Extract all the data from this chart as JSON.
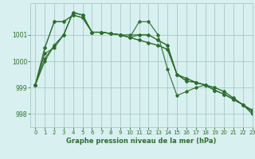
{
  "bg_color": "#d8f0f0",
  "grid_color": "#a8c8c8",
  "line_color": "#2d6e2d",
  "xlabel": "Graphe pression niveau de la mer (hPa)",
  "ylim": [
    997.5,
    1002.2
  ],
  "xlim": [
    -0.5,
    23
  ],
  "yticks": [
    998,
    999,
    1000,
    1001
  ],
  "xticks": [
    0,
    1,
    2,
    3,
    4,
    5,
    6,
    7,
    8,
    9,
    10,
    11,
    12,
    13,
    14,
    15,
    16,
    17,
    18,
    19,
    20,
    21,
    22,
    23
  ],
  "series": [
    [
      999.1,
      1000.0,
      1000.6,
      1001.0,
      1001.85,
      1001.75,
      1001.1,
      1001.1,
      1001.05,
      1001.0,
      1001.0,
      1001.0,
      1001.0,
      1000.8,
      1000.6,
      999.5,
      999.35,
      999.2,
      999.1,
      999.0,
      998.85,
      998.6,
      998.35,
      998.1
    ],
    [
      999.1,
      1000.3,
      1000.5,
      1001.0,
      1001.85,
      1001.75,
      1001.1,
      1001.1,
      1001.05,
      1001.0,
      1000.9,
      1001.0,
      1001.0,
      1000.8,
      1000.6,
      999.5,
      999.35,
      999.2,
      999.1,
      999.0,
      998.85,
      998.6,
      998.35,
      998.1
    ],
    [
      999.1,
      1000.5,
      1001.5,
      1001.5,
      1001.75,
      1001.65,
      1001.1,
      1001.1,
      1001.05,
      1001.0,
      1000.9,
      1000.8,
      1000.7,
      1000.6,
      1000.45,
      999.5,
      999.25,
      999.2,
      999.1,
      998.9,
      998.75,
      998.55,
      998.35,
      998.15
    ],
    [
      999.1,
      1000.5,
      1001.5,
      1001.5,
      1001.75,
      1001.65,
      1001.1,
      1001.1,
      1001.05,
      1001.0,
      1000.9,
      1000.8,
      1000.7,
      1000.6,
      1000.45,
      999.5,
      999.25,
      999.2,
      999.1,
      998.9,
      998.75,
      998.55,
      998.35,
      998.0
    ],
    [
      999.1,
      1000.1,
      1000.6,
      1001.0,
      1001.85,
      1001.75,
      1001.1,
      1001.1,
      1001.05,
      1001.0,
      1000.9,
      1001.5,
      1001.5,
      1001.0,
      999.7,
      998.7,
      998.85,
      999.0,
      999.1,
      998.9,
      998.75,
      998.55,
      998.35,
      998.0
    ]
  ]
}
